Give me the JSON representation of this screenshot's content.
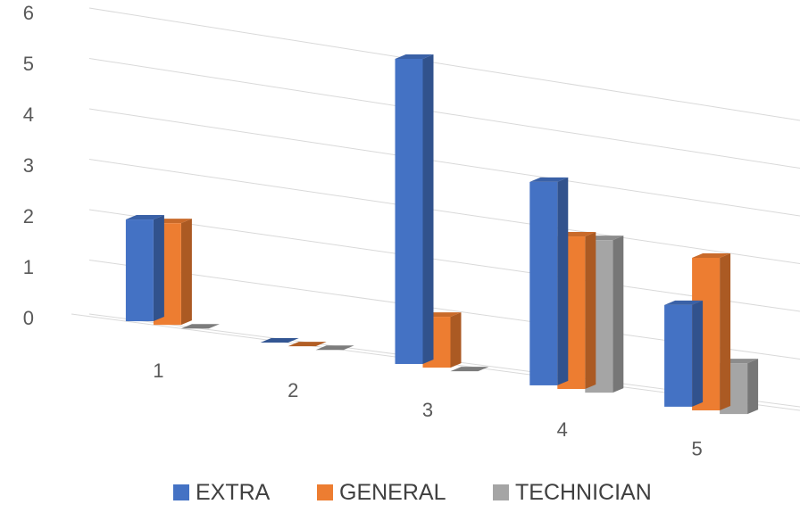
{
  "chart_data": {
    "type": "bar",
    "style": "3d-clustered-column",
    "categories": [
      "1",
      "2",
      "3",
      "4",
      "5"
    ],
    "series": [
      {
        "name": "EXTRA",
        "color": "#4472C4",
        "values": [
          2,
          0,
          6,
          4,
          2
        ]
      },
      {
        "name": "GENERAL",
        "color": "#ED7D31",
        "values": [
          2,
          0,
          1,
          3,
          3
        ]
      },
      {
        "name": "TECHNICIAN",
        "color": "#A5A5A5",
        "values": [
          0,
          0,
          0,
          3,
          1
        ]
      }
    ],
    "y_ticks": [
      "0",
      "1",
      "2",
      "3",
      "4",
      "5",
      "6"
    ],
    "ylim": [
      0,
      6
    ],
    "grid": true,
    "legend_position": "bottom"
  }
}
